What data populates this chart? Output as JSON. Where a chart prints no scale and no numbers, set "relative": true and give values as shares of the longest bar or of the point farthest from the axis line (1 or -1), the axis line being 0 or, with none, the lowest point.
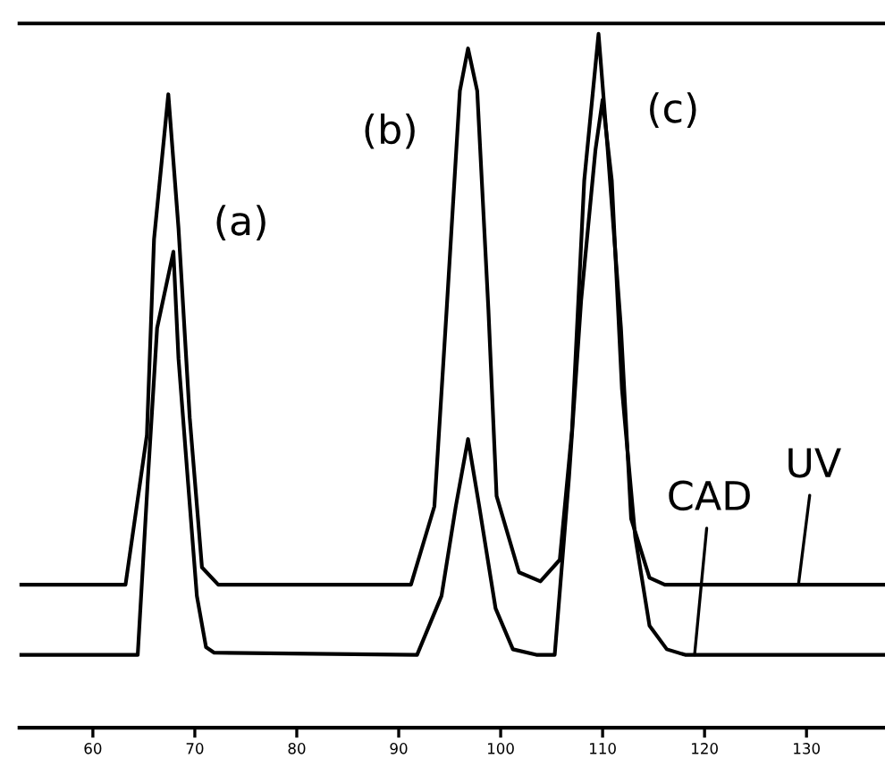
{
  "chart_data": {
    "type": "line",
    "relative": true,
    "xlim": [
      52.8,
      137.7
    ],
    "xticks": [
      60,
      70,
      80,
      90,
      100,
      110,
      120,
      130
    ],
    "tick_labels": "x",
    "legend": false,
    "marker": "none",
    "line_style": "solid",
    "series": [
      {
        "name": "UV",
        "color": "#000000",
        "x": [
          52.8,
          63.2,
          65.3,
          66.0,
          67.4,
          68.4,
          69.5,
          70.7,
          72.3,
          91.2,
          93.5,
          94.7,
          96.0,
          96.8,
          97.7,
          98.8,
          99.6,
          101.8,
          103.9,
          105.8,
          107.0,
          108.2,
          109.6,
          110.5,
          111.8,
          112.8,
          114.6,
          116.1,
          137.7
        ],
        "values": [
          0.206,
          0.206,
          0.422,
          0.704,
          0.913,
          0.72,
          0.447,
          0.231,
          0.206,
          0.206,
          0.319,
          0.602,
          0.918,
          0.979,
          0.918,
          0.602,
          0.334,
          0.224,
          0.211,
          0.242,
          0.429,
          0.789,
          1.0,
          0.833,
          0.576,
          0.301,
          0.216,
          0.206,
          0.206
        ]
      },
      {
        "name": "CAD",
        "color": "#000000",
        "x": [
          52.8,
          64.4,
          65.4,
          66.3,
          67.9,
          68.4,
          69.3,
          70.2,
          71.1,
          71.9,
          91.8,
          94.2,
          95.6,
          96.8,
          97.9,
          99.5,
          101.2,
          103.5,
          105.3,
          106.7,
          107.9,
          109.3,
          110.0,
          110.9,
          111.9,
          113.2,
          114.6,
          116.3,
          118.1,
          137.7
        ],
        "values": [
          0.105,
          0.105,
          0.36,
          0.576,
          0.686,
          0.532,
          0.36,
          0.19,
          0.116,
          0.108,
          0.105,
          0.19,
          0.319,
          0.416,
          0.319,
          0.172,
          0.113,
          0.105,
          0.105,
          0.36,
          0.617,
          0.833,
          0.905,
          0.789,
          0.488,
          0.275,
          0.147,
          0.113,
          0.105,
          0.105
        ]
      }
    ],
    "annotations": [
      "(a)",
      "(b)",
      "(c)"
    ]
  }
}
